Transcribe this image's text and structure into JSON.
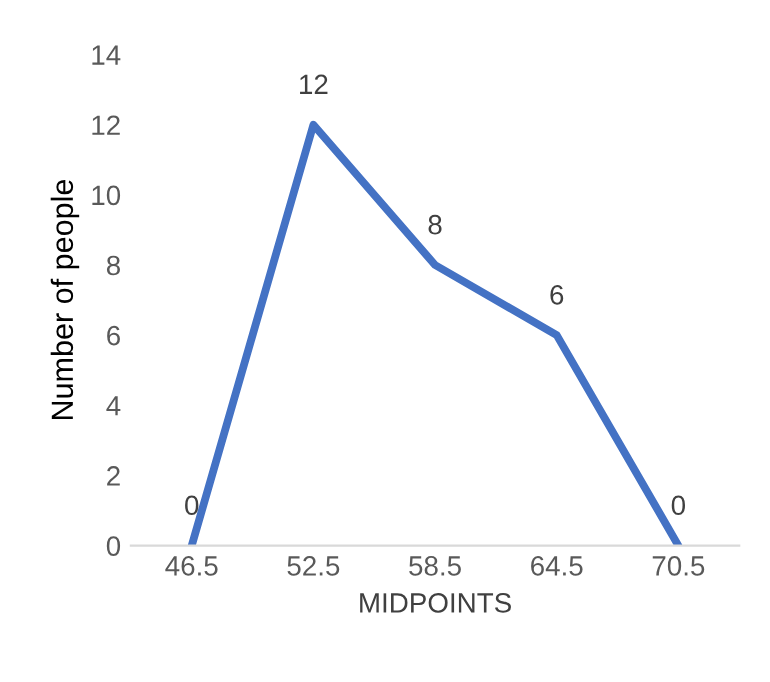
{
  "chart_data": {
    "type": "line",
    "xlabel": "MIDPOINTS",
    "ylabel": "Number of people",
    "categories": [
      "46.5",
      "52.5",
      "58.5",
      "64.5",
      "70.5"
    ],
    "series": [
      {
        "color": "#4472c4",
        "values": [
          0,
          12,
          8,
          6,
          0
        ]
      }
    ],
    "ylim": [
      0,
      14
    ],
    "yticks": [
      0,
      2,
      4,
      6,
      8,
      10,
      12,
      14
    ],
    "data_labels": true,
    "grid": false,
    "marker": "none",
    "line_style": "solid"
  }
}
